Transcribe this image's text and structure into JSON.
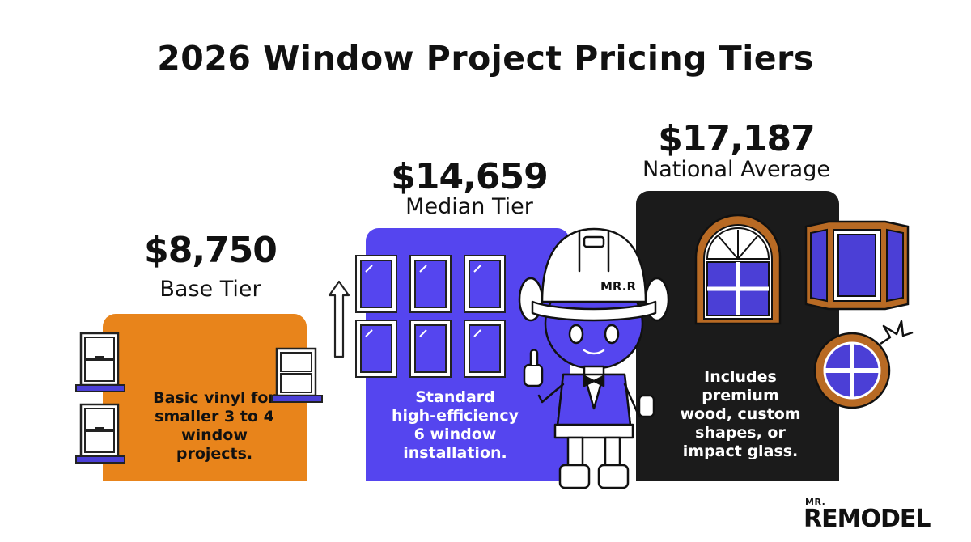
{
  "title": "2026 Window Project Pricing Tiers",
  "tiers": [
    {
      "price": "$8,750",
      "name": "Base Tier",
      "description": [
        "Basic vinyl for",
        "smaller 3 to 4",
        "window",
        "projects."
      ],
      "color": "#e8841b"
    },
    {
      "price": "$14,659",
      "name": "Median Tier",
      "description": [
        "Standard",
        "high-efficiency",
        "6 window",
        "installation."
      ],
      "color": "#5545ef"
    },
    {
      "price": "$17,187",
      "name": "National Average",
      "description": [
        "Includes",
        "premium",
        "wood, custom",
        "shapes, or",
        "impact glass."
      ],
      "color": "#1b1b1b"
    }
  ],
  "mascot": {
    "helmet_label": "MR.R"
  },
  "brand": {
    "small": "MR.",
    "big": "REMODEL"
  },
  "colors": {
    "orange": "#e8841b",
    "purple": "#5545ef",
    "black": "#1b1b1b",
    "wood": "#b86a24",
    "frame_purple": "#4b3fd6"
  }
}
